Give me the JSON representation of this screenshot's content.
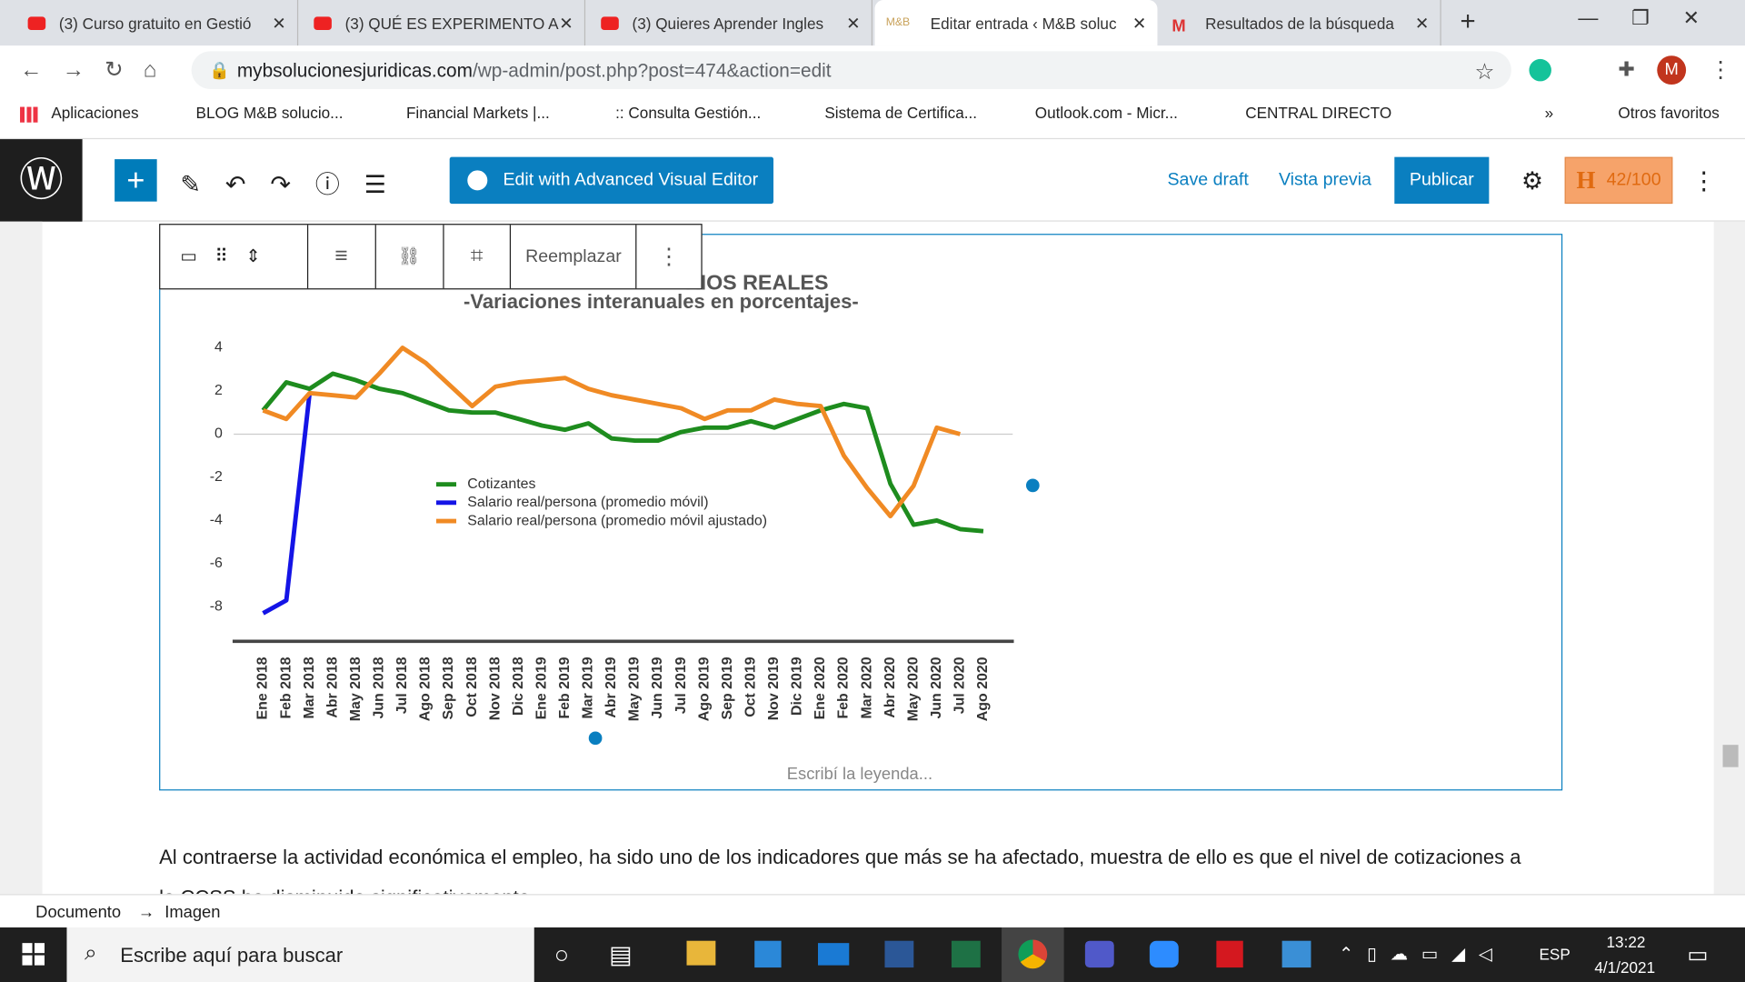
{
  "browser": {
    "tabs": [
      "(3) Curso gratuito en Gestió",
      "(3) QUÉ ES EXPERIMENTO A",
      "(3) Quieres Aprender Ingles",
      "Editar entrada ‹ M&B soluc",
      "Resultados de la búsqueda"
    ],
    "url_host": "mybsolucionesjuridicas.com",
    "url_path": "/wp-admin/post.php?post=474&action=edit",
    "profile": "M",
    "bookmarks": [
      "Aplicaciones",
      "BLOG M&B solucio...",
      "Financial Markets |...",
      ":: Consulta Gestión...",
      "Sistema de Certifica...",
      "Outlook.com - Micr...",
      "CENTRAL DIRECTO"
    ],
    "other_bookmarks": "Otros favoritos"
  },
  "editor": {
    "ave_button": "Edit with Advanced Visual Editor",
    "save_draft": "Save draft",
    "preview": "Vista previa",
    "publish": "Publicar",
    "score": "42/100",
    "replace": "Reemplazar",
    "caption_placeholder": "Escribí la leyenda...",
    "paragraph": "Al contraerse la actividad económica el empleo, ha sido uno de los indicadores que más se ha afectado, muestra de ello es que el nivel de cotizaciones a la CCSS ha disminuido significativamente.",
    "breadcrumb": [
      "Documento",
      "Imagen"
    ]
  },
  "chart_data": {
    "type": "line",
    "title": "RIOS REALES",
    "subtitle": "-Variaciones interanuales en porcentajes-",
    "categories": [
      "Ene 2018",
      "Feb 2018",
      "Mar 2018",
      "Abr 2018",
      "May 2018",
      "Jun 2018",
      "Jul 2018",
      "Ago 2018",
      "Sep 2018",
      "Oct 2018",
      "Nov 2018",
      "Dic 2018",
      "Ene 2019",
      "Feb 2019",
      "Mar 2019",
      "Abr 2019",
      "May 2019",
      "Jun 2019",
      "Jul 2019",
      "Ago 2019",
      "Sep 2019",
      "Oct 2019",
      "Nov 2019",
      "Dic 2019",
      "Ene 2020",
      "Feb 2020",
      "Mar 2020",
      "Abr 2020",
      "May 2020",
      "Jun 2020",
      "Jul 2020",
      "Ago 2020"
    ],
    "series": [
      {
        "name": "Cotizantes",
        "color": "#1e8c1e",
        "values": [
          1.1,
          2.4,
          2.1,
          2.8,
          2.5,
          2.1,
          1.9,
          1.5,
          1.1,
          1.0,
          1.0,
          0.7,
          0.4,
          0.2,
          0.5,
          -0.2,
          -0.3,
          -0.3,
          0.1,
          0.3,
          0.3,
          0.6,
          0.3,
          0.7,
          1.1,
          1.4,
          1.2,
          -2.3,
          -4.2,
          -4.0,
          -4.4,
          -4.5
        ]
      },
      {
        "name": "Salario real/persona (promedio móvil)",
        "color": "#1414e6",
        "values": [
          -8.3,
          -7.7,
          1.9,
          null,
          null,
          null,
          null,
          null,
          null,
          null,
          null,
          null,
          null,
          null,
          null,
          null,
          null,
          null,
          null,
          null,
          null,
          null,
          null,
          null,
          null,
          null,
          null,
          null,
          null,
          null,
          null,
          null
        ]
      },
      {
        "name": "Salario real/persona (promedio móvil ajustado)",
        "color": "#f08a24",
        "values": [
          1.1,
          0.7,
          1.9,
          1.8,
          1.7,
          2.8,
          4.0,
          3.3,
          2.3,
          1.3,
          2.2,
          2.4,
          2.5,
          2.6,
          2.1,
          1.8,
          1.6,
          1.4,
          1.2,
          0.7,
          1.1,
          1.1,
          1.6,
          1.4,
          1.3,
          -1.0,
          -2.5,
          -3.8,
          -2.4,
          0.3,
          0.0,
          null
        ]
      }
    ],
    "ylim": [
      -9.6,
      5
    ],
    "yticks": [
      4,
      2,
      0,
      -2,
      -4,
      -6,
      -8
    ],
    "grid": false,
    "legend": "center"
  },
  "taskbar": {
    "search": "Escribe aquí para buscar",
    "lang": "ESP",
    "time": "13:22",
    "date": "4/1/2021"
  }
}
